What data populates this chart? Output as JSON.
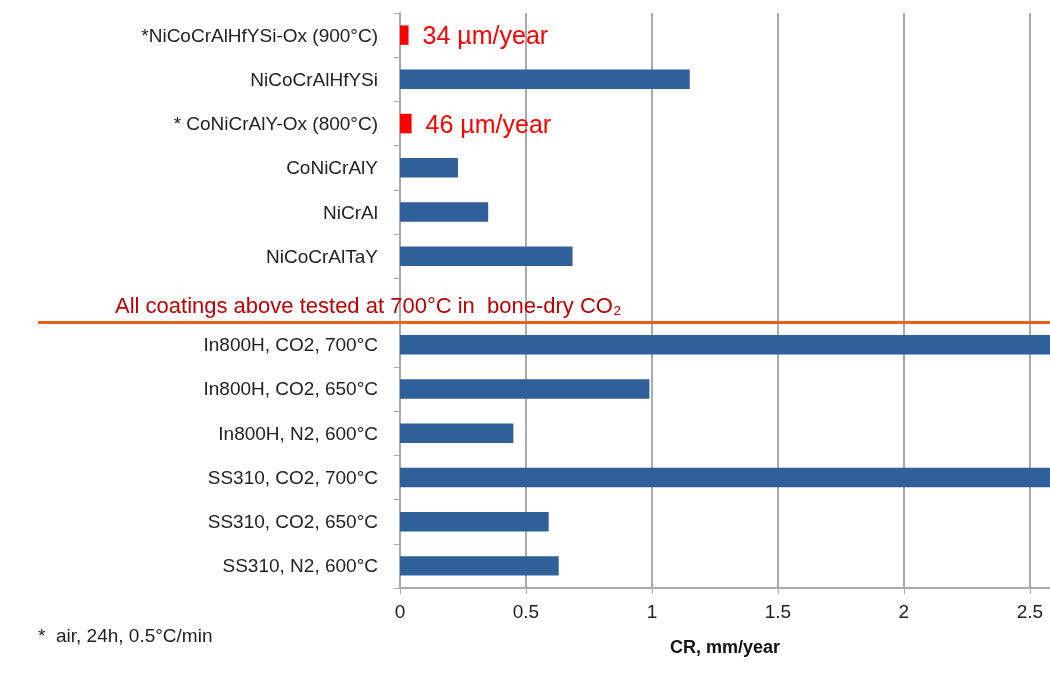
{
  "chart_data": {
    "type": "bar",
    "orientation": "horizontal",
    "xlabel": "CR, mm/year",
    "categories": [
      "*NiCoCrAlHfYSi-Ox (900°C)",
      "NiCoCrAlHfYSi",
      "* CoNiCrAlY-Ox (800°C)",
      "CoNiCrAlY",
      "NiCrAl",
      "NiCoCrAlTaY",
      null,
      "In800H, CO2, 700°C",
      "In800H, CO2, 650°C",
      "In800H, N2, 600°C",
      "SS310, CO2, 700°C",
      "SS310, CO2, 650°C",
      "SS310, N2, 600°C"
    ],
    "values": [
      0.034,
      1.15,
      0.046,
      0.23,
      0.35,
      0.685,
      null,
      2.58,
      0.99,
      0.45,
      2.58,
      0.59,
      0.63
    ],
    "colors": [
      "#ff0000",
      "#30609a",
      "#ff0000",
      "#30609a",
      "#30609a",
      "#30609a",
      "#30609a",
      "#30609a",
      "#30609a",
      "#30609a",
      "#30609a",
      "#30609a",
      "#30609a"
    ],
    "xlim": [
      0,
      2.58
    ],
    "xticks": [
      0,
      0.5,
      1,
      1.5,
      2,
      2.5
    ],
    "grid": "x",
    "ref_lines": [
      {
        "axis": "y",
        "value": "In800H, CO2, 700°C",
        "label": "All coatings above tested at 700°C in  bone-dry CO₂",
        "color": "#e8601c"
      }
    ],
    "annotations": [
      {
        "text": "34 µm/year",
        "x": 0.034,
        "y": "*NiCoCrAlHfYSi-Ox (900°C)"
      },
      {
        "text": "46 µm/year",
        "x": 0.046,
        "y": "* CoNiCrAlY-Ox (800°C)"
      },
      "*  air, 24h, 0.5°C/min"
    ]
  }
}
